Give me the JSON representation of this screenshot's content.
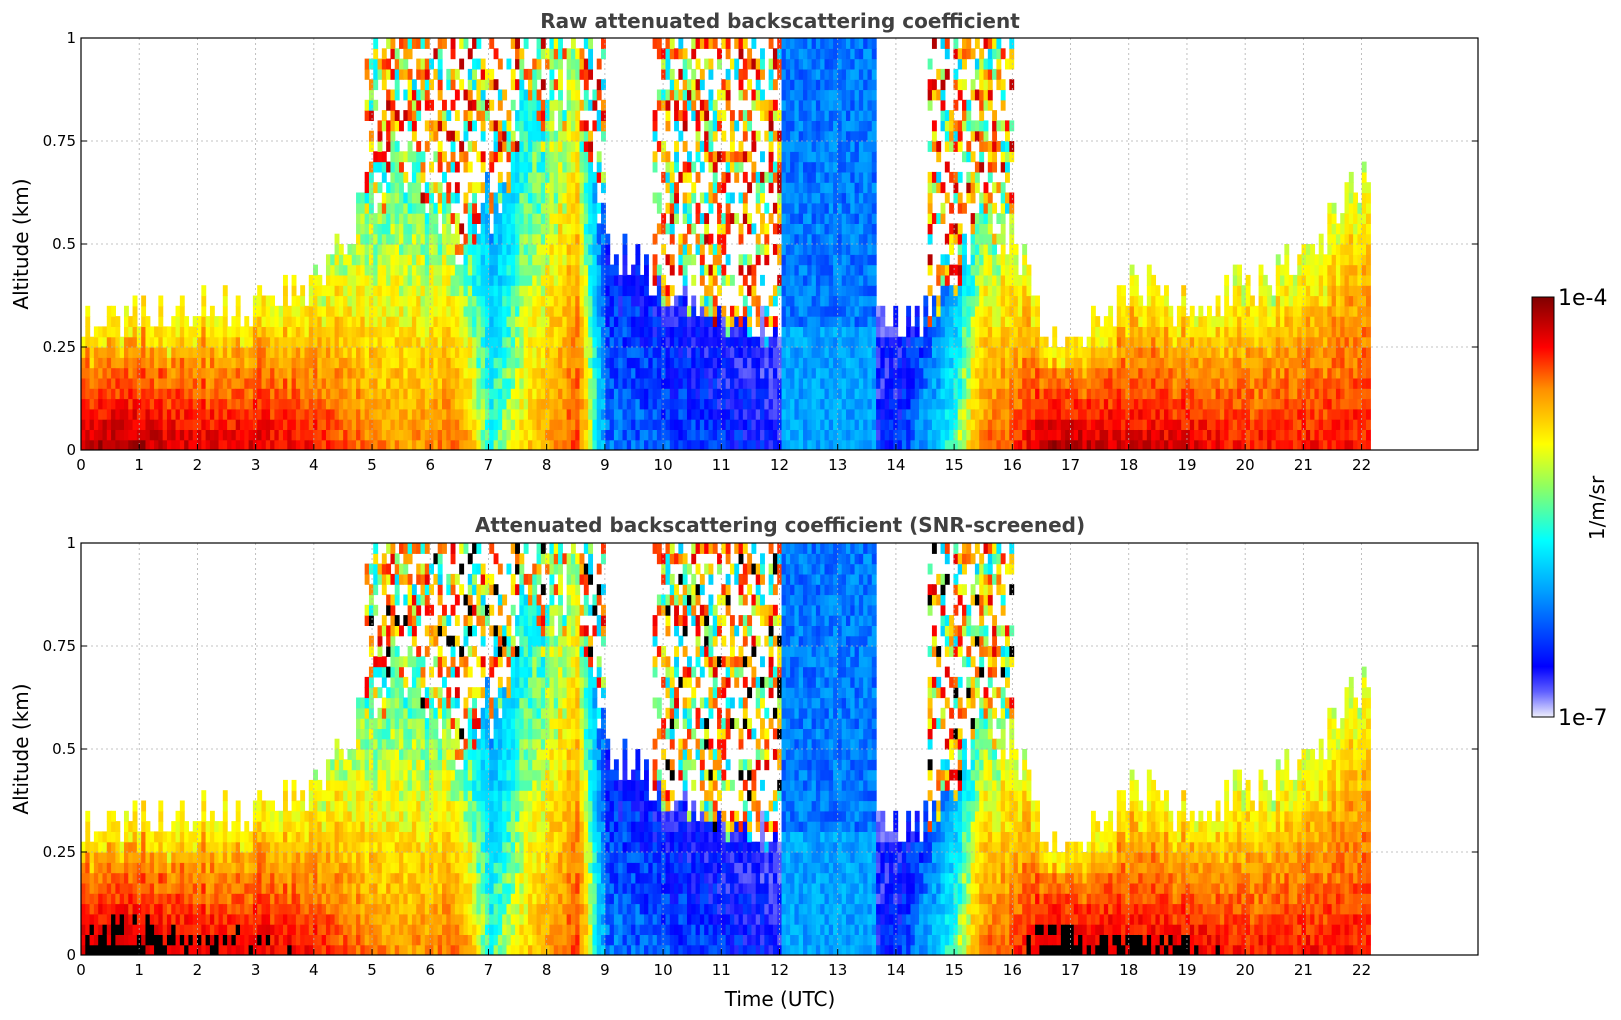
{
  "chart_data": [
    {
      "type": "heatmap",
      "title": "Raw attenuated backscattering coefficient",
      "xlabel": "",
      "ylabel": "Altitude (km)",
      "xlim": [
        0,
        24
      ],
      "ylim": [
        0,
        1
      ],
      "x_ticks": [
        0,
        1,
        2,
        3,
        4,
        5,
        6,
        7,
        8,
        9,
        10,
        11,
        12,
        13,
        14,
        15,
        16,
        17,
        18,
        19,
        20,
        21,
        22
      ],
      "x_tick_labels": [
        "0",
        "1",
        "2",
        "3",
        "4",
        "5",
        "6",
        "7",
        "8",
        "9",
        "10",
        "11",
        "12",
        "13",
        "14",
        "15",
        "16",
        "17",
        "18",
        "19",
        "20",
        "21",
        "22"
      ],
      "y_ticks": [
        0,
        0.25,
        0.5,
        0.75,
        1
      ],
      "y_tick_labels": [
        "0",
        "0.25",
        "0.5",
        "0.75",
        "1"
      ],
      "grid": true,
      "data_extent_hours": [
        0,
        22.15
      ],
      "screened": false,
      "profile": {
        "hours": [
          0,
          1,
          2,
          3,
          4,
          4.8,
          5.5,
          6.5,
          7,
          7.5,
          8.5,
          9,
          10,
          11,
          12,
          13,
          14,
          14.8,
          15.5,
          16,
          16.5,
          17,
          18,
          19,
          20,
          21,
          22
        ],
        "aerosol_top_km": [
          0.3,
          0.33,
          0.35,
          0.35,
          0.4,
          0.6,
          0.7,
          0.5,
          0.6,
          0.8,
          0.9,
          0.5,
          0.4,
          0.3,
          0.3,
          0.3,
          0.3,
          0.35,
          0.6,
          0.5,
          0.3,
          0.25,
          0.4,
          0.35,
          0.4,
          0.45,
          0.7
        ],
        "intensity": [
          0.95,
          0.95,
          0.9,
          0.9,
          0.85,
          0.75,
          0.7,
          0.75,
          0.45,
          0.6,
          0.8,
          0.25,
          0.22,
          0.18,
          0.15,
          0.12,
          0.18,
          0.4,
          0.75,
          0.8,
          0.95,
          0.95,
          0.9,
          0.9,
          0.85,
          0.85,
          0.85
        ]
      }
    },
    {
      "type": "heatmap",
      "title": "Attenuated backscattering coefficient (SNR-screened)",
      "xlabel": "Time (UTC)",
      "ylabel": "Altitude (km)",
      "xlim": [
        0,
        24
      ],
      "ylim": [
        0,
        1
      ],
      "x_ticks": [
        0,
        1,
        2,
        3,
        4,
        5,
        6,
        7,
        8,
        9,
        10,
        11,
        12,
        13,
        14,
        15,
        16,
        17,
        18,
        19,
        20,
        21,
        22
      ],
      "x_tick_labels": [
        "0",
        "1",
        "2",
        "3",
        "4",
        "5",
        "6",
        "7",
        "8",
        "9",
        "10",
        "11",
        "12",
        "13",
        "14",
        "15",
        "16",
        "17",
        "18",
        "19",
        "20",
        "21",
        "22"
      ],
      "y_ticks": [
        0,
        0.25,
        0.5,
        0.75,
        1
      ],
      "y_tick_labels": [
        "0",
        "0.25",
        "0.5",
        "0.75",
        "1"
      ],
      "grid": true,
      "data_extent_hours": [
        0,
        22.15
      ],
      "screened": true
    }
  ],
  "colorbar": {
    "label": "1/m/sr",
    "max_label": "1e-4",
    "min_label": "1e-7",
    "scale": "log",
    "range": [
      1e-07,
      0.0001
    ],
    "colormap": [
      "#eeeefc",
      "#0000ff",
      "#00a0ff",
      "#00ffff",
      "#ffff00",
      "#ff9000",
      "#ff0000",
      "#800000"
    ],
    "saturated_color_screened": "#000000"
  }
}
